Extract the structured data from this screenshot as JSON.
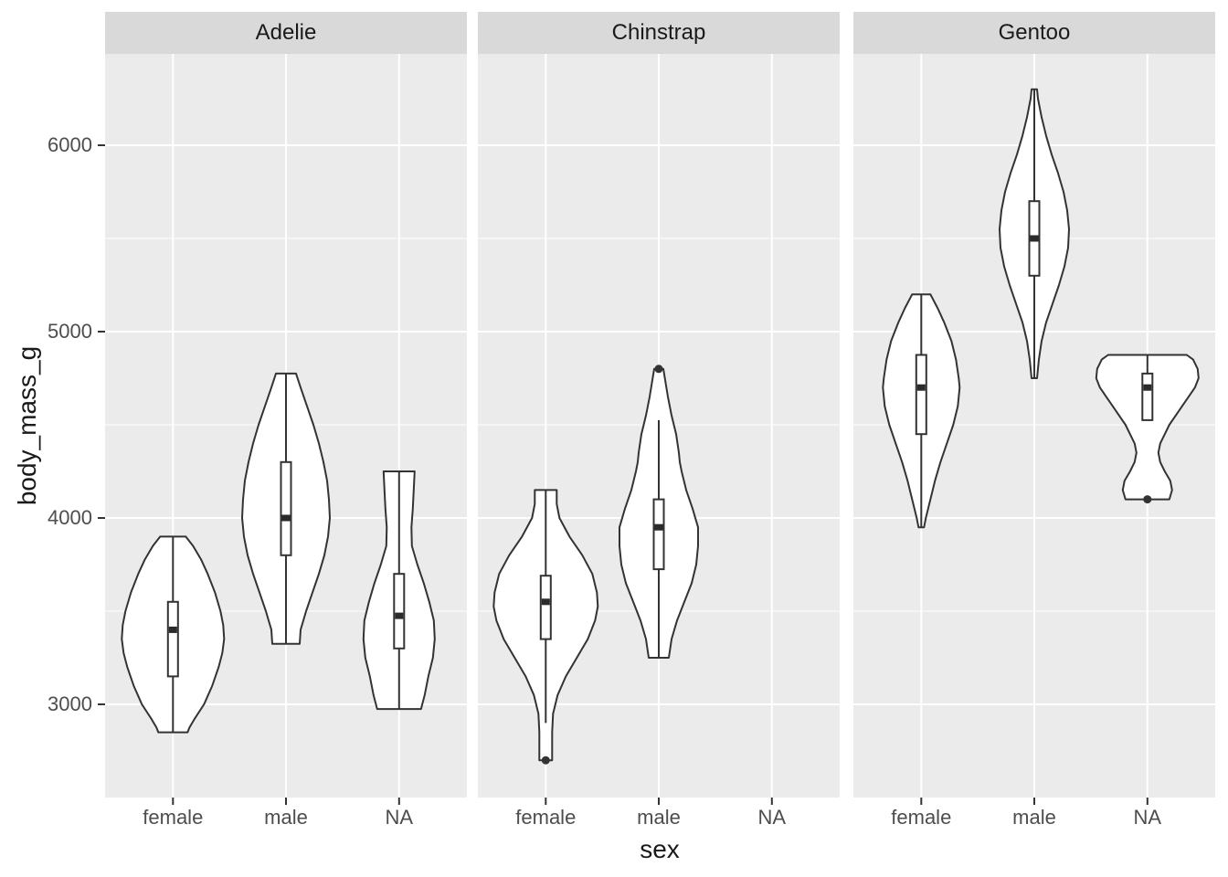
{
  "chart_data": {
    "type": "violin",
    "title": "",
    "xlabel": "sex",
    "ylabel": "body_mass_g",
    "x_categories": [
      "female",
      "male",
      "NA"
    ],
    "y_axis": {
      "ticks": [
        3000,
        4000,
        5000,
        6000
      ],
      "minor_gridlines": [
        3500,
        4500,
        5500
      ],
      "domain": [
        2500,
        6490
      ],
      "grid": true
    },
    "legend_position": "none",
    "facet_variable_values": [
      "Adelie",
      "Chinstrap",
      "Gentoo"
    ],
    "panels": [
      {
        "label": "Adelie",
        "violins": [
          {
            "x": "female",
            "min": 2850,
            "max": 3900,
            "q1": 3150,
            "median": 3400,
            "q3": 3550,
            "whisker_low": 2850,
            "whisker_high": 3900,
            "outliers": [],
            "density_profile": [
              [
                3900,
                14
              ],
              [
                3850,
                22
              ],
              [
                3775,
                31
              ],
              [
                3700,
                38
              ],
              [
                3600,
                46
              ],
              [
                3500,
                52
              ],
              [
                3425,
                55
              ],
              [
                3350,
                56
              ],
              [
                3275,
                54
              ],
              [
                3200,
                50
              ],
              [
                3100,
                43
              ],
              [
                3000,
                34
              ],
              [
                2925,
                24
              ],
              [
                2875,
                18
              ],
              [
                2850,
                16
              ]
            ]
          },
          {
            "x": "male",
            "min": 3325,
            "max": 4775,
            "q1": 3800,
            "median": 4000,
            "q3": 4300,
            "whisker_low": 3325,
            "whisker_high": 4775,
            "outliers": [],
            "density_profile": [
              [
                4775,
                11
              ],
              [
                4700,
                16
              ],
              [
                4600,
                23
              ],
              [
                4500,
                30
              ],
              [
                4400,
                36
              ],
              [
                4300,
                41
              ],
              [
                4200,
                45
              ],
              [
                4100,
                47
              ],
              [
                4000,
                48
              ],
              [
                3900,
                46
              ],
              [
                3800,
                42
              ],
              [
                3700,
                36
              ],
              [
                3600,
                29
              ],
              [
                3500,
                22
              ],
              [
                3400,
                16
              ],
              [
                3325,
                15
              ]
            ]
          },
          {
            "x": "NA",
            "min": 2975,
            "max": 4250,
            "q1": 3300,
            "median": 3475,
            "q3": 3700,
            "whisker_low": 2975,
            "whisker_high": 4250,
            "outliers": [],
            "density_profile": [
              [
                4250,
                17
              ],
              [
                4150,
                16
              ],
              [
                4050,
                15
              ],
              [
                3950,
                13.5
              ],
              [
                3850,
                14
              ],
              [
                3750,
                20
              ],
              [
                3650,
                27
              ],
              [
                3550,
                33
              ],
              [
                3450,
                38
              ],
              [
                3350,
                39
              ],
              [
                3250,
                37
              ],
              [
                3150,
                32
              ],
              [
                3050,
                28
              ],
              [
                2975,
                24
              ]
            ]
          }
        ]
      },
      {
        "label": "Chinstrap",
        "violins": [
          {
            "x": "female",
            "min": 2700,
            "max": 4150,
            "q1": 3350,
            "median": 3550,
            "q3": 3690,
            "whisker_low": 2900,
            "whisker_high": 4150,
            "outliers": [
              2700
            ],
            "density_profile": [
              [
                4150,
                12
              ],
              [
                4075,
                12
              ],
              [
                4000,
                15
              ],
              [
                3900,
                26
              ],
              [
                3800,
                40
              ],
              [
                3700,
                51
              ],
              [
                3600,
                56
              ],
              [
                3525,
                57
              ],
              [
                3450,
                54
              ],
              [
                3350,
                46
              ],
              [
                3250,
                34
              ],
              [
                3150,
                22
              ],
              [
                3050,
                13
              ],
              [
                2950,
                8
              ],
              [
                2850,
                7
              ],
              [
                2750,
                7
              ],
              [
                2700,
                7
              ]
            ]
          },
          {
            "x": "male",
            "min": 3250,
            "max": 4800,
            "q1": 3725,
            "median": 3950,
            "q3": 4100,
            "whisker_low": 3250,
            "whisker_high": 4525,
            "outliers": [
              4800
            ],
            "density_profile": [
              [
                4800,
                5
              ],
              [
                4740,
                7
              ],
              [
                4650,
                10
              ],
              [
                4550,
                14
              ],
              [
                4450,
                19
              ],
              [
                4350,
                22
              ],
              [
                4300,
                23
              ],
              [
                4250,
                25
              ],
              [
                4150,
                30
              ],
              [
                4050,
                37
              ],
              [
                3950,
                43
              ],
              [
                3850,
                43
              ],
              [
                3750,
                41
              ],
              [
                3650,
                36
              ],
              [
                3550,
                28
              ],
              [
                3450,
                20
              ],
              [
                3350,
                14
              ],
              [
                3250,
                11
              ]
            ]
          }
        ]
      },
      {
        "label": "Gentoo",
        "violins": [
          {
            "x": "female",
            "min": 3950,
            "max": 5200,
            "q1": 4450,
            "median": 4700,
            "q3": 4875,
            "whisker_low": 3950,
            "whisker_high": 5200,
            "outliers": [],
            "density_profile": [
              [
                5200,
                10
              ],
              [
                5125,
                18
              ],
              [
                5050,
                25
              ],
              [
                4950,
                33
              ],
              [
                4850,
                38
              ],
              [
                4750,
                41
              ],
              [
                4700,
                42
              ],
              [
                4600,
                40
              ],
              [
                4500,
                35
              ],
              [
                4400,
                28
              ],
              [
                4300,
                21
              ],
              [
                4200,
                15
              ],
              [
                4100,
                10
              ],
              [
                4000,
                5
              ],
              [
                3950,
                3
              ]
            ]
          },
          {
            "x": "male",
            "min": 4750,
            "max": 6300,
            "q1": 5300,
            "median": 5500,
            "q3": 5700,
            "whisker_low": 4750,
            "whisker_high": 6300,
            "outliers": [],
            "density_profile": [
              [
                6300,
                3
              ],
              [
                6250,
                4
              ],
              [
                6150,
                8
              ],
              [
                6050,
                13
              ],
              [
                5950,
                19
              ],
              [
                5850,
                26
              ],
              [
                5750,
                32
              ],
              [
                5650,
                36
              ],
              [
                5550,
                38
              ],
              [
                5450,
                37
              ],
              [
                5350,
                33
              ],
              [
                5250,
                27
              ],
              [
                5150,
                20
              ],
              [
                5050,
                13
              ],
              [
                4950,
                8
              ],
              [
                4850,
                5
              ],
              [
                4750,
                3
              ]
            ]
          },
          {
            "x": "NA",
            "min": 4100,
            "max": 4875,
            "q1": 4525,
            "median": 4700,
            "q3": 4775,
            "whisker_low": 4525,
            "whisker_high": 4875,
            "outliers": [
              4100
            ],
            "density_profile": [
              [
                4875,
                43
              ],
              [
                4850,
                50
              ],
              [
                4800,
                55
              ],
              [
                4750,
                56
              ],
              [
                4700,
                52
              ],
              [
                4650,
                45
              ],
              [
                4600,
                38
              ],
              [
                4500,
                24
              ],
              [
                4400,
                14
              ],
              [
                4350,
                12
              ],
              [
                4300,
                14
              ],
              [
                4250,
                19
              ],
              [
                4200,
                25
              ],
              [
                4150,
                27
              ],
              [
                4100,
                24
              ]
            ]
          }
        ]
      }
    ]
  },
  "style": {
    "figure_bg": "#FFFFFF",
    "panel_bg": "#EBEBEB",
    "strip_bg": "#D9D9D9",
    "gridline": "#FFFFFF",
    "violin_fill": "#FFFFFF",
    "outline": "#333333",
    "median_color": "#2B2B2B",
    "axis_text": "#4D4D4D",
    "title_text": "#1A1A1A"
  }
}
